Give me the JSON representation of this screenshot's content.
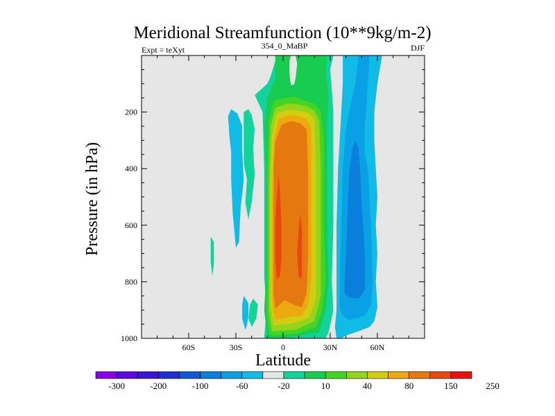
{
  "chart_data": {
    "type": "contour",
    "title": "Meridional Streamfunction (10**9kg/m-2)",
    "left_label": "Expt = teXyt",
    "center_label": "354_0_MaBP",
    "right_label": "DJF",
    "xlabel": "Latitude",
    "ylabel": "Pressure (in hPa)",
    "xlim": [
      -90,
      90
    ],
    "ylim": [
      1000,
      0
    ],
    "x_ticks": [
      {
        "value": -60,
        "label": "60S"
      },
      {
        "value": -30,
        "label": "30S"
      },
      {
        "value": 0,
        "label": "0"
      },
      {
        "value": 30,
        "label": "30N"
      },
      {
        "value": 60,
        "label": "60N"
      }
    ],
    "y_ticks": [
      {
        "value": 200,
        "label": "200"
      },
      {
        "value": 400,
        "label": "400"
      },
      {
        "value": 600,
        "label": "600"
      },
      {
        "value": 800,
        "label": "800"
      },
      {
        "value": 1000,
        "label": "1000"
      }
    ],
    "background_color": "#e6e6e6",
    "colorbar": {
      "colors": [
        "#8800e6",
        "#5a0ae0",
        "#3a14d8",
        "#1e2ed0",
        "#1458d8",
        "#0a80dc",
        "#0aa0e6",
        "#10bce6",
        "#e6e6e6",
        "#10d49c",
        "#18cc50",
        "#44d424",
        "#94d41c",
        "#d4cc10",
        "#ecaa10",
        "#e67810",
        "#e64810",
        "#e61010"
      ],
      "labels": [
        "-300",
        "-200",
        "-100",
        "-60",
        "-20",
        "10",
        "40",
        "80",
        "150",
        "250"
      ]
    },
    "regions": [
      {
        "level": 10,
        "color": "#10d49c",
        "points": [
          [
            -22,
            580
          ],
          [
            -24,
            520
          ],
          [
            -23,
            440
          ],
          [
            -25,
            380
          ],
          [
            -25,
            200
          ],
          [
            -22,
            190
          ],
          [
            -20,
            210
          ],
          [
            -18,
            260
          ],
          [
            -19,
            330
          ],
          [
            -18,
            420
          ],
          [
            -20,
            520
          ]
        ]
      },
      {
        "level": 10,
        "color": "#10d49c",
        "points": [
          [
            -45,
            780
          ],
          [
            -46,
            730
          ],
          [
            -46,
            640
          ],
          [
            -44,
            660
          ],
          [
            -44,
            740
          ]
        ]
      },
      {
        "level": 10,
        "color": "#10d49c",
        "points": [
          [
            -20,
            960
          ],
          [
            -22,
            930
          ],
          [
            -21,
            880
          ],
          [
            -19,
            860
          ],
          [
            -16,
            880
          ],
          [
            -17,
            930
          ]
        ]
      },
      {
        "level": 10,
        "color": "#10d49c",
        "points": [
          [
            -12,
            1000
          ],
          [
            -11,
            930
          ],
          [
            -11,
            860
          ],
          [
            -12,
            780
          ],
          [
            -12,
            600
          ],
          [
            -12,
            400
          ],
          [
            -13,
            200
          ],
          [
            -18,
            140
          ],
          [
            -10,
            100
          ],
          [
            -8,
            75
          ],
          [
            -5,
            20
          ],
          [
            -2,
            0
          ],
          [
            32,
            0
          ],
          [
            30,
            50
          ],
          [
            31,
            120
          ],
          [
            32,
            200
          ],
          [
            32,
            400
          ],
          [
            32,
            600
          ],
          [
            31,
            800
          ],
          [
            32,
            900
          ],
          [
            29,
            980
          ],
          [
            27,
            1000
          ]
        ]
      },
      {
        "level": 40,
        "color": "#18cc50",
        "points": [
          [
            -10,
            1000
          ],
          [
            -12,
            900
          ],
          [
            -11,
            800
          ],
          [
            -11,
            600
          ],
          [
            -11,
            400
          ],
          [
            -12,
            250
          ],
          [
            -10,
            150
          ],
          [
            -5,
            80
          ],
          [
            -5,
            0
          ],
          [
            28,
            0
          ],
          [
            27,
            60
          ],
          [
            28,
            100
          ],
          [
            29,
            150
          ],
          [
            28,
            250
          ],
          [
            28,
            600
          ],
          [
            29,
            800
          ],
          [
            27,
            900
          ],
          [
            23,
            980
          ],
          [
            -1,
            1000
          ]
        ]
      },
      {
        "level": 80,
        "color": "#44d424",
        "points": [
          [
            -8,
            990
          ],
          [
            -10,
            930
          ],
          [
            -10,
            800
          ],
          [
            -10,
            600
          ],
          [
            -10,
            400
          ],
          [
            -9,
            230
          ],
          [
            -6,
            160
          ],
          [
            2,
            150
          ],
          [
            7,
            145
          ],
          [
            14,
            160
          ],
          [
            20,
            170
          ],
          [
            24,
            200
          ],
          [
            26,
            300
          ],
          [
            26,
            600
          ],
          [
            27,
            800
          ],
          [
            25,
            900
          ],
          [
            21,
            960
          ],
          [
            8,
            985
          ]
        ]
      },
      {
        "level": 150,
        "color": "#94d41c",
        "points": [
          [
            -7,
            975
          ],
          [
            -9,
            900
          ],
          [
            -9,
            700
          ],
          [
            -9,
            450
          ],
          [
            -8,
            250
          ],
          [
            -5,
            185
          ],
          [
            3,
            170
          ],
          [
            9,
            172
          ],
          [
            15,
            180
          ],
          [
            20,
            195
          ],
          [
            23,
            230
          ],
          [
            24,
            400
          ],
          [
            24,
            700
          ],
          [
            24,
            850
          ],
          [
            20,
            940
          ],
          [
            8,
            970
          ]
        ]
      },
      {
        "level": 250,
        "color": "#d4cc10",
        "points": [
          [
            -6,
            955
          ],
          [
            -8,
            880
          ],
          [
            -8,
            700
          ],
          [
            -8,
            450
          ],
          [
            -7,
            280
          ],
          [
            -4,
            205
          ],
          [
            3,
            192
          ],
          [
            10,
            195
          ],
          [
            16,
            203
          ],
          [
            20,
            225
          ],
          [
            21,
            400
          ],
          [
            21,
            700
          ],
          [
            21,
            860
          ],
          [
            17,
            925
          ],
          [
            8,
            945
          ]
        ]
      },
      {
        "level": 300,
        "color": "#ecaa10",
        "points": [
          [
            -5,
            935
          ],
          [
            -7,
            870
          ],
          [
            -7,
            700
          ],
          [
            -7,
            500
          ],
          [
            -6,
            300
          ],
          [
            -3,
            225
          ],
          [
            4,
            212
          ],
          [
            10,
            215
          ],
          [
            15,
            225
          ],
          [
            18,
            260
          ],
          [
            18,
            500
          ],
          [
            18,
            780
          ],
          [
            16,
            880
          ],
          [
            12,
            920
          ],
          [
            4,
            925
          ]
        ]
      },
      {
        "level": 350,
        "color": "#e67810",
        "points": [
          [
            -5,
            895
          ],
          [
            -6,
            840
          ],
          [
            -6,
            600
          ],
          [
            -6,
            400
          ],
          [
            -5,
            305
          ],
          [
            -1,
            245
          ],
          [
            5,
            232
          ],
          [
            11,
            240
          ],
          [
            15,
            262
          ],
          [
            16,
            420
          ],
          [
            16,
            700
          ],
          [
            15,
            840
          ],
          [
            12,
            890
          ],
          [
            6,
            880
          ],
          [
            1,
            865
          ]
        ]
      },
      {
        "level": 400,
        "color": "#e64810",
        "points": [
          [
            -4,
            790
          ],
          [
            -5,
            720
          ],
          [
            -5,
            600
          ],
          [
            -4,
            500
          ],
          [
            -3,
            420
          ],
          [
            -2,
            470
          ],
          [
            -1,
            600
          ],
          [
            -1,
            720
          ],
          [
            -2,
            780
          ]
        ]
      },
      {
        "level": 400,
        "color": "#e64810",
        "points": [
          [
            10,
            785
          ],
          [
            9,
            700
          ],
          [
            10,
            610
          ],
          [
            11,
            560
          ],
          [
            12,
            620
          ],
          [
            12,
            700
          ],
          [
            12,
            785
          ]
        ]
      },
      {
        "level": 0,
        "color": "#e6e6e6",
        "points": [
          [
            5,
            105
          ],
          [
            4,
            60
          ],
          [
            4,
            20
          ],
          [
            5,
            0
          ],
          [
            8,
            0
          ],
          [
            9,
            30
          ],
          [
            8,
            80
          ],
          [
            7,
            103
          ]
        ]
      },
      {
        "level": -20,
        "color": "#10bce6",
        "points": [
          [
            -30,
            680
          ],
          [
            -32,
            560
          ],
          [
            -33,
            440
          ],
          [
            -33,
            340
          ],
          [
            -34,
            290
          ],
          [
            -35,
            215
          ],
          [
            -33,
            190
          ],
          [
            -29,
            205
          ],
          [
            -26,
            250
          ],
          [
            -26,
            330
          ],
          [
            -25,
            440
          ],
          [
            -27,
            540
          ],
          [
            -28,
            660
          ]
        ]
      },
      {
        "level": -20,
        "color": "#10bce6",
        "points": [
          [
            -24,
            970
          ],
          [
            -26,
            930
          ],
          [
            -26,
            880
          ],
          [
            -25,
            850
          ],
          [
            -22,
            875
          ],
          [
            -22,
            920
          ],
          [
            -23,
            955
          ]
        ]
      },
      {
        "level": -20,
        "color": "#10bce6",
        "points": [
          [
            34,
            1000
          ],
          [
            33,
            960
          ],
          [
            34,
            900
          ],
          [
            34,
            800
          ],
          [
            34,
            600
          ],
          [
            35,
            400
          ],
          [
            37,
            200
          ],
          [
            38,
            100
          ],
          [
            38,
            0
          ],
          [
            63,
            0
          ],
          [
            60,
            100
          ],
          [
            58,
            200
          ],
          [
            58,
            300
          ],
          [
            59,
            400
          ],
          [
            60,
            500
          ],
          [
            59,
            600
          ],
          [
            60,
            700
          ],
          [
            59,
            800
          ],
          [
            60,
            890
          ],
          [
            58,
            940
          ],
          [
            55,
            960
          ],
          [
            48,
            975
          ],
          [
            40,
            990
          ],
          [
            37,
            1000
          ]
        ]
      },
      {
        "level": -60,
        "color": "#0aa0e6",
        "points": [
          [
            36,
            890
          ],
          [
            36,
            800
          ],
          [
            37,
            600
          ],
          [
            38,
            400
          ],
          [
            40,
            260
          ],
          [
            42,
            200
          ],
          [
            46,
            100
          ],
          [
            48,
            0
          ],
          [
            55,
            0
          ],
          [
            54,
            100
          ],
          [
            52,
            250
          ],
          [
            52,
            350
          ],
          [
            54,
            400
          ],
          [
            56,
            600
          ],
          [
            57,
            800
          ],
          [
            56,
            880
          ],
          [
            52,
            920
          ],
          [
            42,
            935
          ],
          [
            38,
            920
          ]
        ]
      },
      {
        "level": -100,
        "color": "#0a80dc",
        "points": [
          [
            39,
            840
          ],
          [
            40,
            700
          ],
          [
            41,
            550
          ],
          [
            42,
            420
          ],
          [
            44,
            330
          ],
          [
            46,
            300
          ],
          [
            48,
            330
          ],
          [
            49,
            400
          ],
          [
            50,
            520
          ],
          [
            52,
            700
          ],
          [
            52,
            830
          ],
          [
            48,
            860
          ],
          [
            42,
            855
          ]
        ]
      }
    ]
  }
}
